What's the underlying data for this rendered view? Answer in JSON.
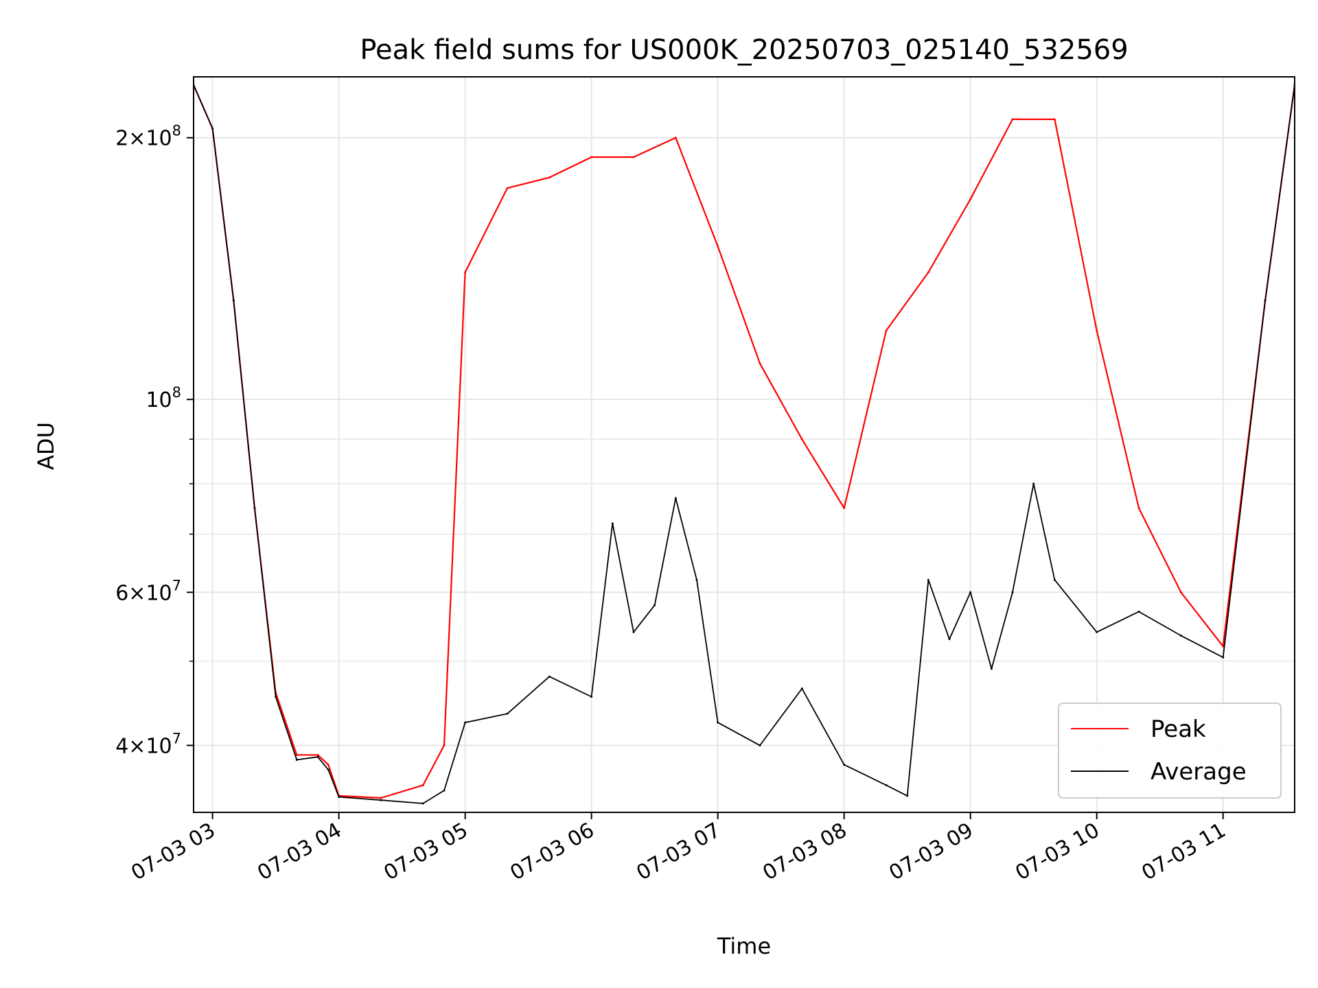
{
  "chart_data": {
    "type": "line",
    "title": "Peak field sums for US000K_20250703_025140_532569",
    "xlabel": "Time",
    "ylabel": "ADU",
    "y_scale": "log",
    "ylim": [
      33500000,
      235000000
    ],
    "xlim": [
      "2025-07-03 02:51",
      "2025-07-03 11:34"
    ],
    "grid": true,
    "legend_placement": "lower-right",
    "x_ticks": [
      "07-03 03",
      "07-03 04",
      "07-03 05",
      "07-03 06",
      "07-03 07",
      "07-03 08",
      "07-03 09",
      "07-03 10",
      "07-03 11"
    ],
    "y_ticks": [
      {
        "value": 40000000,
        "base": "4",
        "exp": "7"
      },
      {
        "value": 60000000,
        "base": "6",
        "exp": "7"
      },
      {
        "value": 100000000,
        "base": "",
        "exp": "8"
      },
      {
        "value": 200000000,
        "base": "2",
        "exp": "8"
      }
    ],
    "series": [
      {
        "name": "Peak",
        "color": "#ff0000",
        "x": [
          "2025-07-03 02:51",
          "2025-07-03 03:00",
          "2025-07-03 03:10",
          "2025-07-03 03:20",
          "2025-07-03 03:30",
          "2025-07-03 03:40",
          "2025-07-03 03:50",
          "2025-07-03 03:55",
          "2025-07-03 04:00",
          "2025-07-03 04:20",
          "2025-07-03 04:40",
          "2025-07-03 04:50",
          "2025-07-03 05:00",
          "2025-07-03 05:20",
          "2025-07-03 05:40",
          "2025-07-03 06:00",
          "2025-07-03 06:20",
          "2025-07-03 06:40",
          "2025-07-03 07:00",
          "2025-07-03 07:20",
          "2025-07-03 07:40",
          "2025-07-03 08:00",
          "2025-07-03 08:20",
          "2025-07-03 08:40",
          "2025-07-03 09:00",
          "2025-07-03 09:20",
          "2025-07-03 09:40",
          "2025-07-03 10:00",
          "2025-07-03 10:20",
          "2025-07-03 10:40",
          "2025-07-03 11:00",
          "2025-07-03 11:20",
          "2025-07-03 11:34"
        ],
        "values": [
          230000000,
          205000000,
          130000000,
          75000000,
          46000000,
          39000000,
          39000000,
          38000000,
          35000000,
          34800000,
          36000000,
          40000000,
          140000000,
          175000000,
          180000000,
          190000000,
          190000000,
          200000000,
          150000000,
          110000000,
          90000000,
          75000000,
          120000000,
          140000000,
          170000000,
          210000000,
          210000000,
          120000000,
          75000000,
          60000000,
          52000000,
          130000000,
          230000000
        ]
      },
      {
        "name": "Average",
        "color": "#000000",
        "x": [
          "2025-07-03 02:51",
          "2025-07-03 03:00",
          "2025-07-03 03:10",
          "2025-07-03 03:20",
          "2025-07-03 03:30",
          "2025-07-03 03:40",
          "2025-07-03 03:50",
          "2025-07-03 03:55",
          "2025-07-03 04:00",
          "2025-07-03 04:20",
          "2025-07-03 04:40",
          "2025-07-03 04:50",
          "2025-07-03 05:00",
          "2025-07-03 05:20",
          "2025-07-03 05:40",
          "2025-07-03 06:00",
          "2025-07-03 06:10",
          "2025-07-03 06:20",
          "2025-07-03 06:30",
          "2025-07-03 06:40",
          "2025-07-03 06:50",
          "2025-07-03 07:00",
          "2025-07-03 07:20",
          "2025-07-03 07:40",
          "2025-07-03 08:00",
          "2025-07-03 08:20",
          "2025-07-03 08:30",
          "2025-07-03 08:40",
          "2025-07-03 08:50",
          "2025-07-03 09:00",
          "2025-07-03 09:10",
          "2025-07-03 09:20",
          "2025-07-03 09:30",
          "2025-07-03 09:40",
          "2025-07-03 10:00",
          "2025-07-03 10:20",
          "2025-07-03 10:40",
          "2025-07-03 11:00",
          "2025-07-03 11:20",
          "2025-07-03 11:34"
        ],
        "values": [
          230000000,
          205000000,
          130000000,
          75000000,
          45500000,
          38500000,
          38800000,
          37500000,
          34900000,
          34600000,
          34300000,
          35500000,
          42500000,
          43500000,
          48000000,
          45500000,
          72000000,
          54000000,
          58000000,
          77000000,
          62000000,
          42500000,
          40000000,
          46500000,
          38000000,
          36000000,
          35000000,
          62000000,
          53000000,
          60000000,
          49000000,
          60000000,
          80000000,
          62000000,
          54000000,
          57000000,
          53500000,
          50500000,
          130000000,
          230000000
        ]
      }
    ],
    "legend": [
      "Peak",
      "Average"
    ]
  }
}
